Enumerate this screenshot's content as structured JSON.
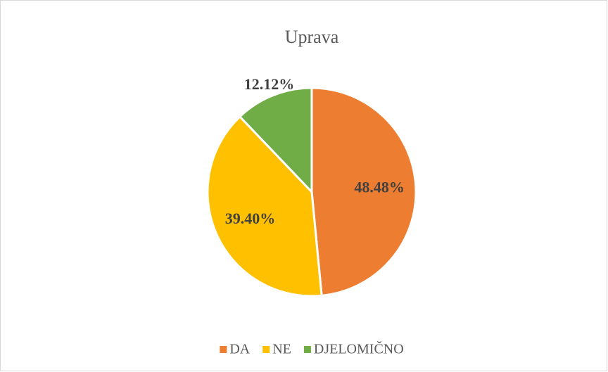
{
  "chart_data": {
    "type": "pie",
    "title": "Uprava",
    "categories": [
      "DA",
      "NE",
      "DJELOMIČNO"
    ],
    "values": [
      48.48,
      39.4,
      12.12
    ],
    "value_labels": [
      "48.48%",
      "39.40%",
      "12.12%"
    ],
    "colors": [
      "#ED7D31",
      "#FFC000",
      "#70AD47"
    ],
    "legend": "bottom"
  }
}
